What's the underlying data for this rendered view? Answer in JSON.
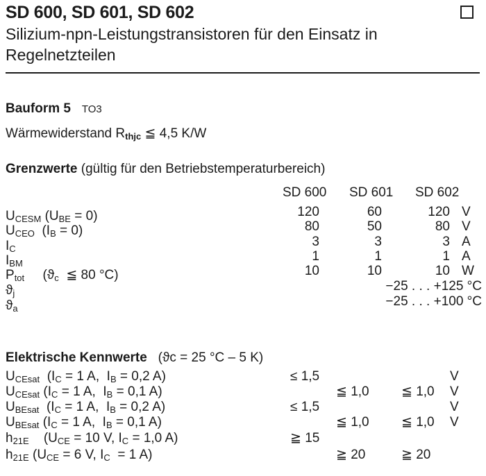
{
  "header": {
    "title": "SD 600, SD 601, SD 602",
    "subtitle_line1": "Silizium-npn-Leistungstransistoren für den Einsatz in",
    "subtitle_line2": "Regelnetzteilen",
    "box_icon": "empty-square"
  },
  "bauform": {
    "label": "Bauform 5",
    "value": "TO3"
  },
  "waermewiderstand": {
    "label": "Wärmewiderstand",
    "symbol": "R",
    "symbol_sub": "thjc",
    "relation": "≦",
    "value": "4,5 K/W"
  },
  "grenzwerte": {
    "heading": "Grenzwerte",
    "note": "(gültig für den Betriebstemperaturbereich)",
    "columns": [
      "SD 600",
      "SD 601",
      "SD 602"
    ],
    "rows": [
      {
        "label": [
          {
            "t": "U"
          },
          {
            "t": "CESM",
            "s": 1
          },
          {
            "t": " (U"
          },
          {
            "t": "BE",
            "s": 1
          },
          {
            "t": " = 0)"
          }
        ],
        "values": [
          "120",
          "60",
          "120"
        ],
        "unit": "V"
      },
      {
        "label": [
          {
            "t": "U"
          },
          {
            "t": "CEO",
            "s": 1
          },
          {
            "t": "  (I"
          },
          {
            "t": "B",
            "s": 1
          },
          {
            "t": " = 0)"
          }
        ],
        "values": [
          "80",
          "50",
          "80"
        ],
        "unit": "V"
      },
      {
        "label": [
          {
            "t": "I"
          },
          {
            "t": "C",
            "s": 1
          }
        ],
        "values": [
          "3",
          "3",
          "3"
        ],
        "unit": "A"
      },
      {
        "label": [
          {
            "t": "I"
          },
          {
            "t": "BM",
            "s": 1
          }
        ],
        "values": [
          "1",
          "1",
          "1"
        ],
        "unit": "A"
      },
      {
        "label": [
          {
            "t": "P"
          },
          {
            "t": "tot",
            "s": 1
          },
          {
            "t": "     (ϑ"
          },
          {
            "t": "c",
            "s": 1
          },
          {
            "t": "  ≦ 80 °C)"
          }
        ],
        "values": [
          "10",
          "10",
          "10"
        ],
        "unit": "W"
      },
      {
        "label": [
          {
            "t": "ϑ"
          },
          {
            "t": "j",
            "s": 1
          }
        ],
        "range": "−25 . . . +125 °C"
      },
      {
        "label": [
          {
            "t": "ϑ"
          },
          {
            "t": "a",
            "s": 1
          }
        ],
        "range": "−25 . . . +100 °C"
      }
    ]
  },
  "kennwerte": {
    "heading": "Elektrische Kennwerte",
    "note": "(ϑc = 25 °C – 5 K)",
    "rows": [
      {
        "label": [
          {
            "t": "U"
          },
          {
            "t": "CEsat",
            "s": 1
          },
          {
            "t": "  (I"
          },
          {
            "t": "C",
            "s": 1
          },
          {
            "t": " = 1 A,  I"
          },
          {
            "t": "B",
            "s": 1
          },
          {
            "t": " = 0,2 A)"
          }
        ],
        "values": [
          "≤ 1,5",
          "",
          ""
        ],
        "unit": "V"
      },
      {
        "label": [
          {
            "t": "U"
          },
          {
            "t": "CEsat",
            "s": 1
          },
          {
            "t": " (I"
          },
          {
            "t": "C",
            "s": 1
          },
          {
            "t": " = 1 A,  I"
          },
          {
            "t": "B",
            "s": 1
          },
          {
            "t": " = 0,1 A)"
          }
        ],
        "values": [
          "",
          "≦ 1,0",
          "≦ 1,0"
        ],
        "unit": "V"
      },
      {
        "label": [
          {
            "t": "U"
          },
          {
            "t": "BEsat",
            "s": 1
          },
          {
            "t": "  (I"
          },
          {
            "t": "C",
            "s": 1
          },
          {
            "t": " = 1 A,  I"
          },
          {
            "t": "B",
            "s": 1
          },
          {
            "t": " = 0,2 A)"
          }
        ],
        "values": [
          "≤ 1,5",
          "",
          ""
        ],
        "unit": "V"
      },
      {
        "label": [
          {
            "t": "U"
          },
          {
            "t": "BEsat",
            "s": 1
          },
          {
            "t": " (I"
          },
          {
            "t": "C",
            "s": 1
          },
          {
            "t": " = 1 A,  I"
          },
          {
            "t": "B",
            "s": 1
          },
          {
            "t": " = 0,1 A)"
          }
        ],
        "values": [
          "",
          "≦ 1,0",
          "≦ 1,0"
        ],
        "unit": "V"
      },
      {
        "label": [
          {
            "t": "h"
          },
          {
            "t": "21E",
            "s": 1
          },
          {
            "t": "    (U"
          },
          {
            "t": "CE",
            "s": 1
          },
          {
            "t": " = 10 V, I"
          },
          {
            "t": "C",
            "s": 1
          },
          {
            "t": " = 1,0 A)"
          }
        ],
        "values": [
          "≧ 15",
          "",
          ""
        ],
        "unit": ""
      },
      {
        "label": [
          {
            "t": "h"
          },
          {
            "t": "21E",
            "s": 1
          },
          {
            "t": " (U"
          },
          {
            "t": "CE",
            "s": 1
          },
          {
            "t": " = 6 V, I"
          },
          {
            "t": "C",
            "s": 1
          },
          {
            "t": "  = 1 A)"
          }
        ],
        "values": [
          "",
          "≧ 20",
          "≧ 20"
        ],
        "unit": ""
      }
    ]
  }
}
